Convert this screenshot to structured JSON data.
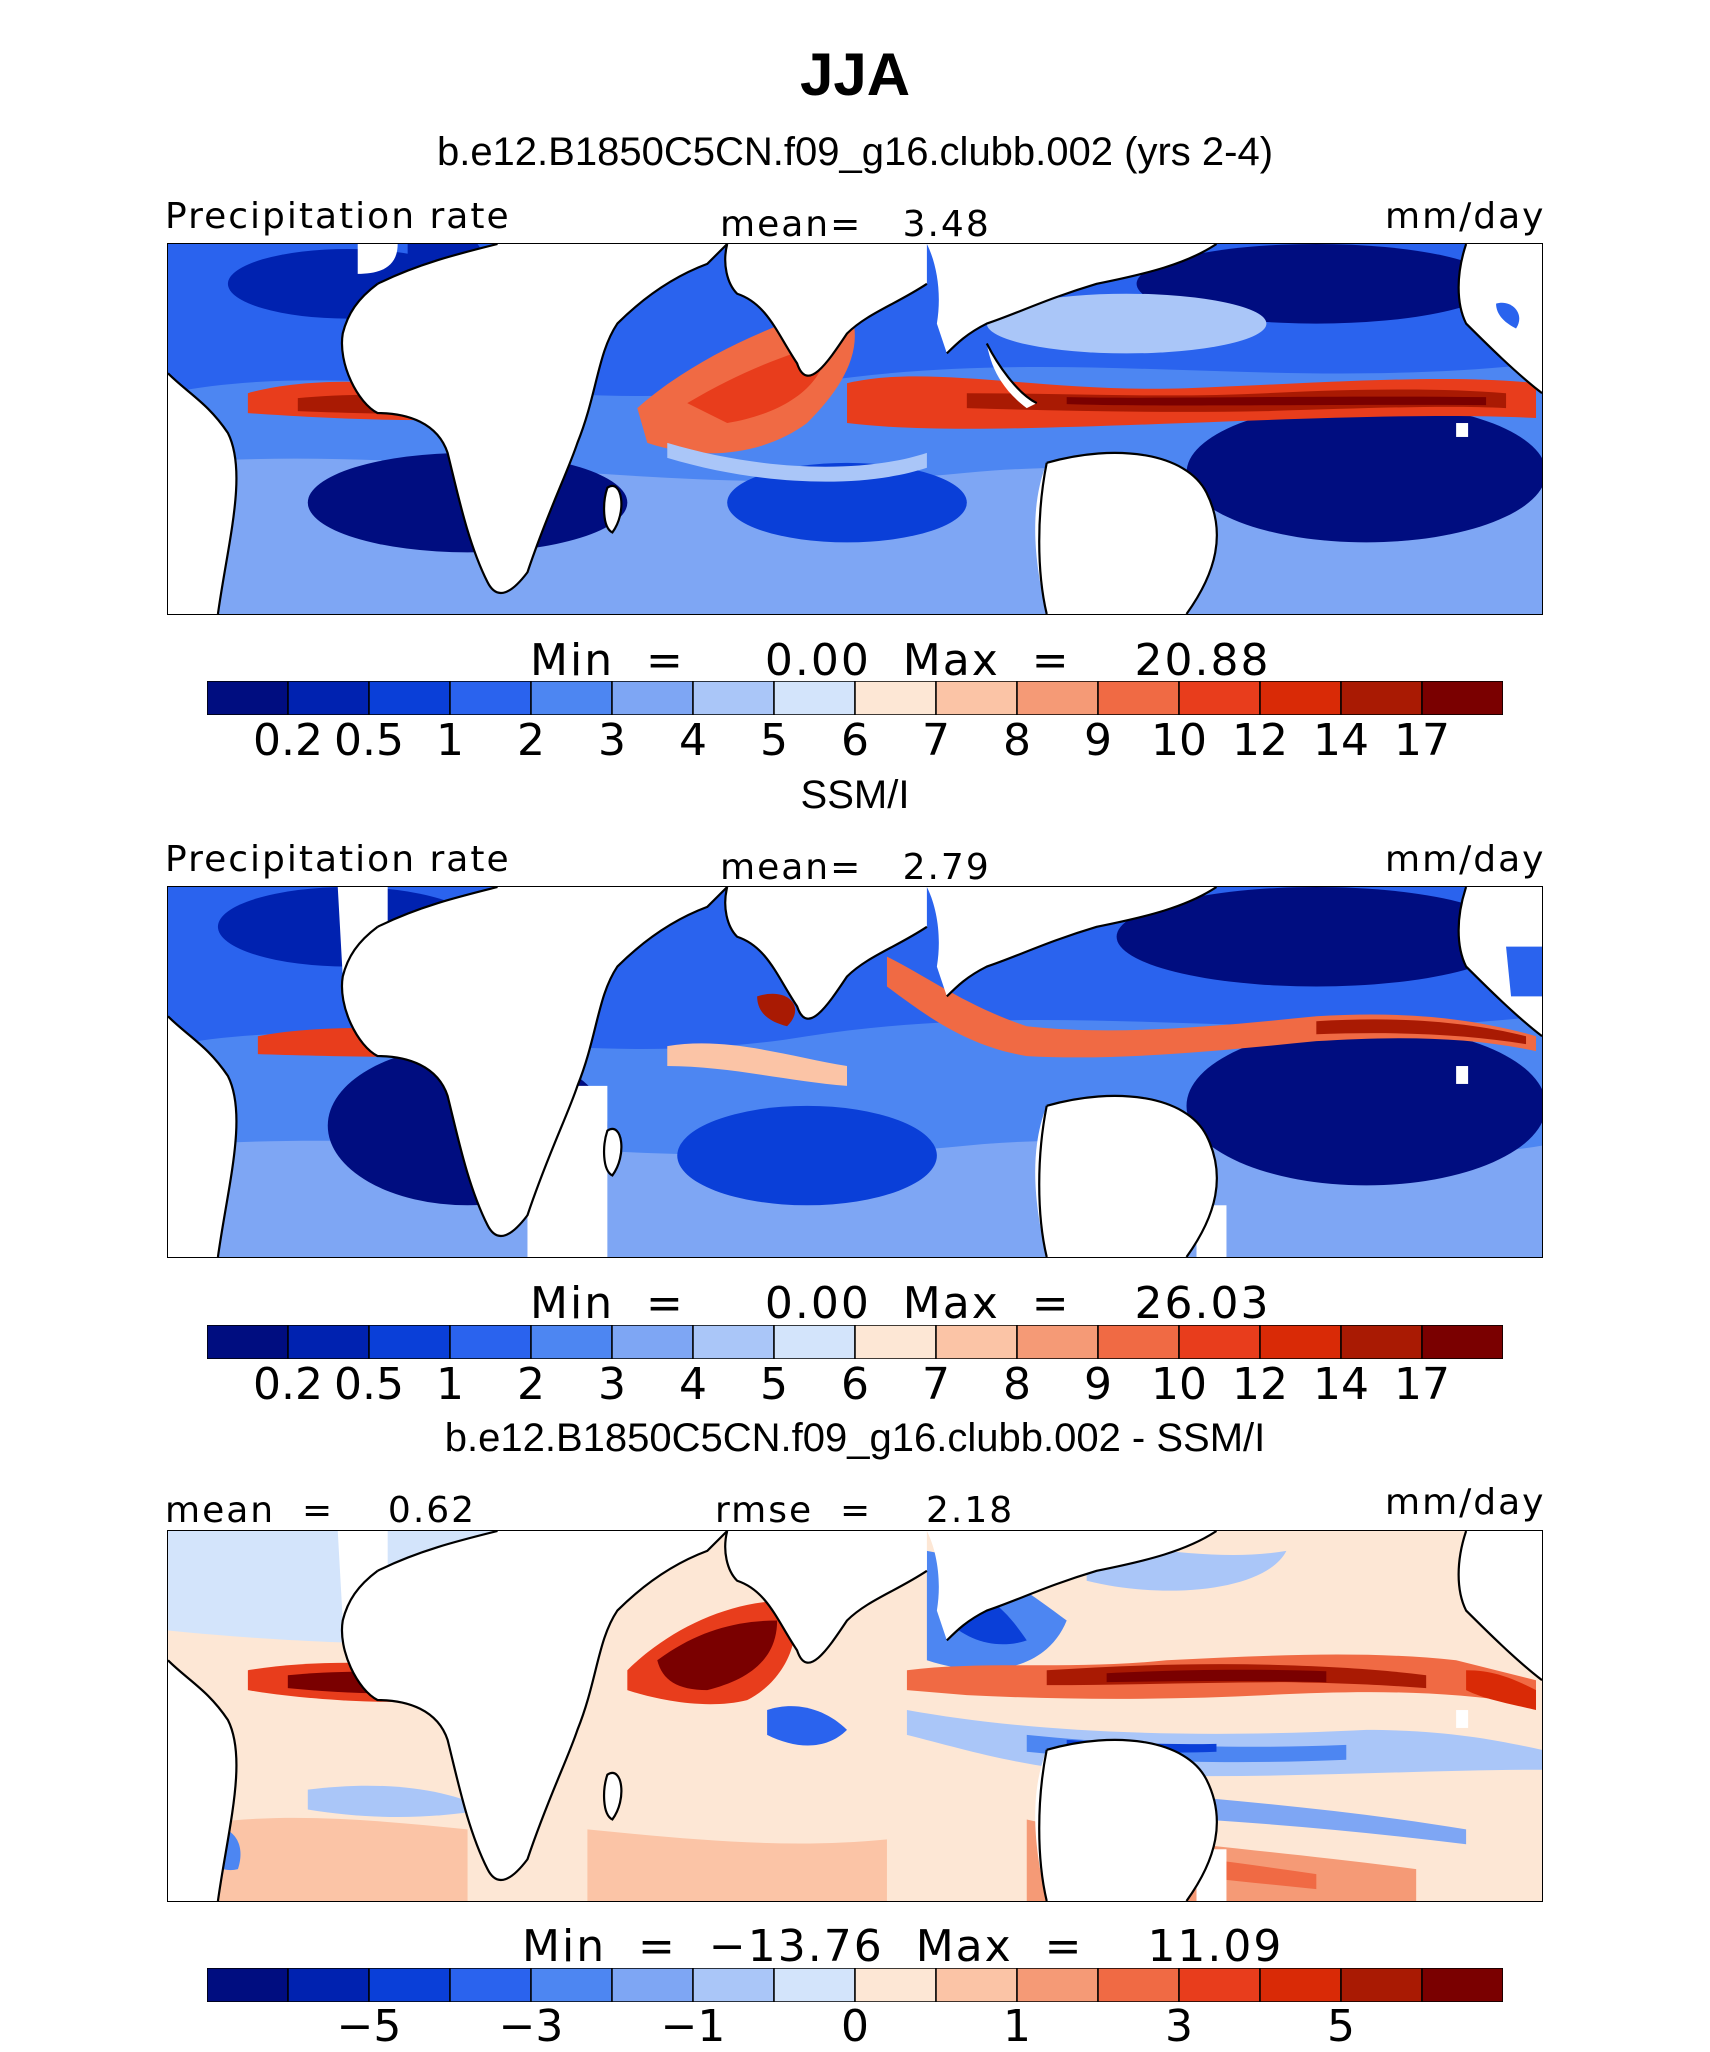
{
  "title": "JJA",
  "units": "mm/day",
  "panels": [
    {
      "title": "b.e12.B1850C5CN.f09_g16.clubb.002 (yrs 2-4)",
      "left_label": "Precipitation rate",
      "center_label": "mean=   3.48",
      "right_label": "mm/day",
      "minmax": "Min  =     0.00  Max  =    20.88",
      "colorbar_ticks": [
        "0.2",
        "0.5",
        "1",
        "2",
        "3",
        "4",
        "5",
        "6",
        "7",
        "8",
        "9",
        "10",
        "12",
        "14",
        "17"
      ]
    },
    {
      "title": "SSM/I",
      "left_label": "Precipitation rate",
      "center_label": "mean=   2.79",
      "right_label": "mm/day",
      "minmax": "Min  =     0.00  Max  =    26.03",
      "colorbar_ticks": [
        "0.2",
        "0.5",
        "1",
        "2",
        "3",
        "4",
        "5",
        "6",
        "7",
        "8",
        "9",
        "10",
        "12",
        "14",
        "17"
      ]
    },
    {
      "title": "b.e12.B1850C5CN.f09_g16.clubb.002 - SSM/I",
      "left_label": "mean  =    0.62",
      "center_label": "rmse  =    2.18",
      "right_label": "mm/day",
      "minmax": "Min  =  −13.76  Max  =    11.09",
      "colorbar_ticks": [
        "−5",
        "−3",
        "−1",
        "0",
        "1",
        "3",
        "5"
      ]
    }
  ],
  "colors": {
    "abs_scale": [
      "#000d80",
      "#0022b0",
      "#0a3fd8",
      "#2a63ee",
      "#4d86f2",
      "#7ea6f4",
      "#aac6f8",
      "#d3e4fb",
      "#fde7d5",
      "#fbc4a6",
      "#f59a76",
      "#f06a44",
      "#e83d1c",
      "#d92a06",
      "#a91a03",
      "#7a0000"
    ],
    "diff_scale": [
      "#000d80",
      "#0022b0",
      "#0a3fd8",
      "#2a63ee",
      "#4d86f2",
      "#7ea6f4",
      "#aac6f8",
      "#d3e4fb",
      "#fde7d5",
      "#fbc4a6",
      "#f59a76",
      "#f06a44",
      "#e83d1c",
      "#d92a06",
      "#a91a03",
      "#7a0000"
    ],
    "land": "#ffffff"
  }
}
